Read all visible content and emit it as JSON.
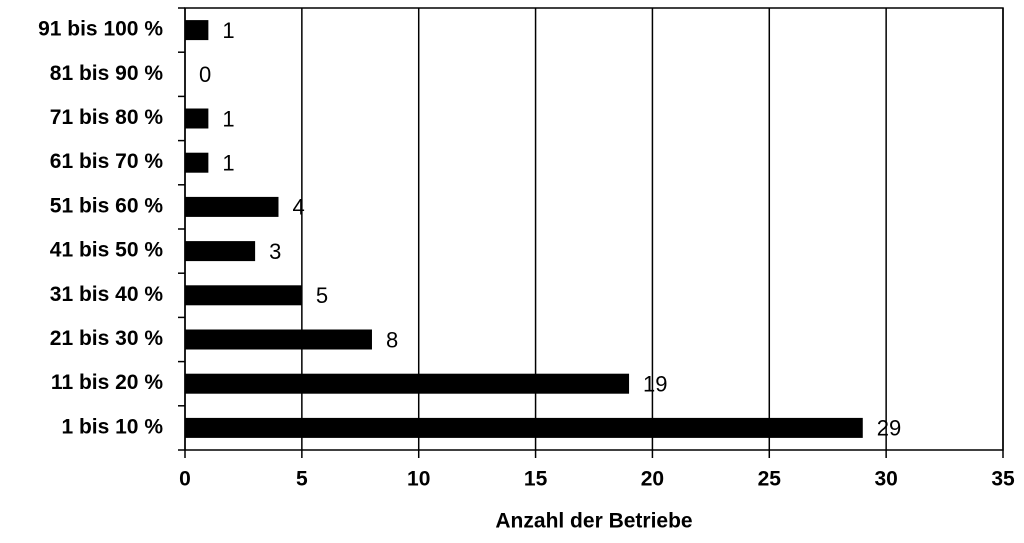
{
  "chart_data": {
    "type": "bar",
    "orientation": "horizontal",
    "x_label": "Anzahl der Betriebe",
    "categories": [
      "1 bis 10 %",
      "11 bis 20 %",
      "21 bis 30 %",
      "31 bis 40 %",
      "41 bis 50 %",
      "51 bis 60 %",
      "61 bis 70 %",
      "71 bis 80 %",
      "81 bis 90 %",
      "91 bis 100 %"
    ],
    "values": [
      29,
      19,
      8,
      5,
      3,
      4,
      1,
      1,
      0,
      1
    ],
    "color": "#000000",
    "xlim": [
      0,
      35
    ],
    "xticks": [
      0,
      5,
      10,
      15,
      20,
      25,
      30,
      35
    ],
    "grid": true
  }
}
